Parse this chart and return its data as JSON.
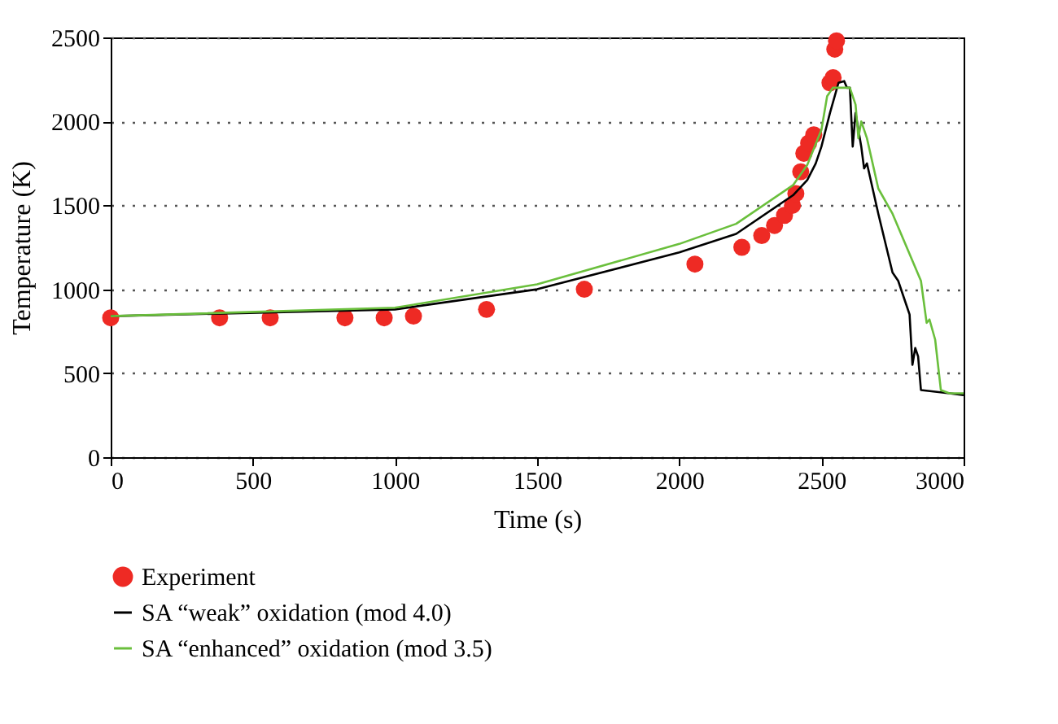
{
  "chart_data": {
    "type": "line",
    "xlabel": "Time (s)",
    "ylabel": "Temperature (K)",
    "xlim": [
      0,
      3000
    ],
    "xticks": [
      0,
      500,
      1000,
      1500,
      2000,
      2500,
      3000
    ],
    "ylim": [
      0,
      2500
    ],
    "yticks": [
      0,
      500,
      1000,
      1500,
      2000,
      2500
    ],
    "grid": "y",
    "legend": "bottom",
    "series": [
      {
        "name": "Experiment",
        "type": "scatter",
        "marker": "circle",
        "color": "#ee2a24",
        "x": [
          0,
          383,
          561,
          824,
          962,
          1065,
          1322,
          1666,
          2055,
          2220,
          2290,
          2335,
          2370,
          2398,
          2410,
          2427,
          2438,
          2455,
          2473,
          2530,
          2541,
          2547,
          2553
        ],
        "values": [
          830,
          830,
          830,
          830,
          830,
          840,
          880,
          1000,
          1150,
          1250,
          1320,
          1380,
          1440,
          1500,
          1570,
          1700,
          1810,
          1870,
          1920,
          2230,
          2260,
          2430,
          2480
        ]
      },
      {
        "name": "SA “weak” oxidation (mod 4.0)",
        "type": "line",
        "marker": "none",
        "color": "#000000",
        "x": [
          0,
          1000,
          1500,
          2000,
          2200,
          2400,
          2450,
          2480,
          2500,
          2530,
          2560,
          2580,
          2590,
          2600,
          2610,
          2620,
          2640,
          2650,
          2660,
          2700,
          2750,
          2770,
          2800,
          2810,
          2820,
          2830,
          2840,
          2850,
          2900,
          2950,
          3000
        ],
        "values": [
          840,
          880,
          1000,
          1220,
          1330,
          1560,
          1650,
          1750,
          1850,
          2050,
          2230,
          2240,
          2200,
          2200,
          1850,
          2050,
          1850,
          1720,
          1750,
          1450,
          1100,
          1050,
          900,
          850,
          550,
          650,
          600,
          400,
          390,
          380,
          370
        ]
      },
      {
        "name": "SA “enhanced” oxidation (mod 3.5)",
        "type": "line",
        "marker": "none",
        "color": "#6abf3c",
        "x": [
          0,
          1000,
          1500,
          2000,
          2200,
          2400,
          2450,
          2500,
          2520,
          2540,
          2600,
          2620,
          2630,
          2640,
          2660,
          2700,
          2750,
          2800,
          2850,
          2870,
          2880,
          2900,
          2920,
          2950,
          3000
        ],
        "values": [
          840,
          890,
          1030,
          1270,
          1390,
          1620,
          1740,
          1950,
          2150,
          2200,
          2200,
          2100,
          1900,
          2000,
          1900,
          1600,
          1450,
          1250,
          1050,
          800,
          820,
          700,
          400,
          380,
          380
        ]
      }
    ]
  }
}
